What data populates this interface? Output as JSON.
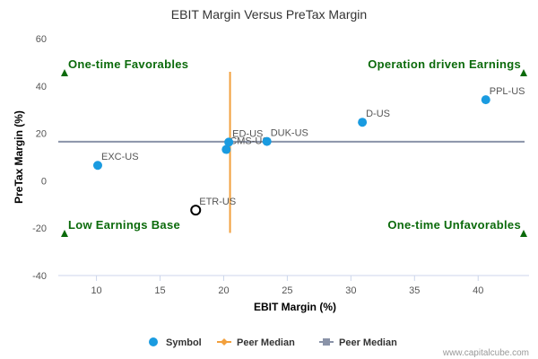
{
  "chart_data": {
    "type": "scatter",
    "title": "EBIT Margin Versus PreTax Margin",
    "xlabel": "EBIT Margin (%)",
    "ylabel": "PreTax Margin (%)",
    "xlim": [
      7,
      44
    ],
    "ylim": [
      -40,
      60
    ],
    "xticks": [
      10,
      15,
      20,
      25,
      30,
      35,
      40
    ],
    "yticks": [
      -40,
      -20,
      0,
      20,
      40,
      60
    ],
    "grid": false,
    "points": [
      {
        "label": "EXC-US",
        "x": 10.1,
        "y": 6.5,
        "style": "filled"
      },
      {
        "label": "CMS-US",
        "x": 20.2,
        "y": 13.2,
        "style": "filled"
      },
      {
        "label": "ED-US",
        "x": 20.4,
        "y": 16.3,
        "style": "filled"
      },
      {
        "label": "DUK-US",
        "x": 23.4,
        "y": 16.6,
        "style": "filled"
      },
      {
        "label": "D-US",
        "x": 30.9,
        "y": 24.7,
        "style": "filled"
      },
      {
        "label": "PPL-US",
        "x": 40.6,
        "y": 34.2,
        "style": "filled"
      },
      {
        "label": "ETR-US",
        "x": 17.8,
        "y": -12.4,
        "style": "hollow"
      }
    ],
    "peer_median_x": 20.5,
    "peer_median_x_range": [
      -22,
      46
    ],
    "peer_median_y": 16.5,
    "quadrants": {
      "top_left": "One-time Favorables",
      "top_right": "Operation driven Earnings",
      "bottom_left": "Low Earnings Base",
      "bottom_right": "One-time Unfavorables"
    },
    "legend": {
      "placement": "bottom",
      "items": [
        {
          "label": "Symbol",
          "marker": "circle",
          "color": "#1a9be0"
        },
        {
          "label": "Peer Median",
          "marker": "diamond",
          "color": "#f2a03d"
        },
        {
          "label": "Peer Median",
          "marker": "square",
          "color": "#8a93a8"
        }
      ]
    },
    "credit": "www.capitalcube.com"
  },
  "colors": {
    "point": "#1a9be0",
    "hollow_point": "#000000",
    "median_vertical": "#f2a03d",
    "median_horizontal": "#8a93a8",
    "quadrant_text": "#0b6a0b",
    "quadrant_marker": "#0b6a0b",
    "axis": "#ccd6eb"
  }
}
